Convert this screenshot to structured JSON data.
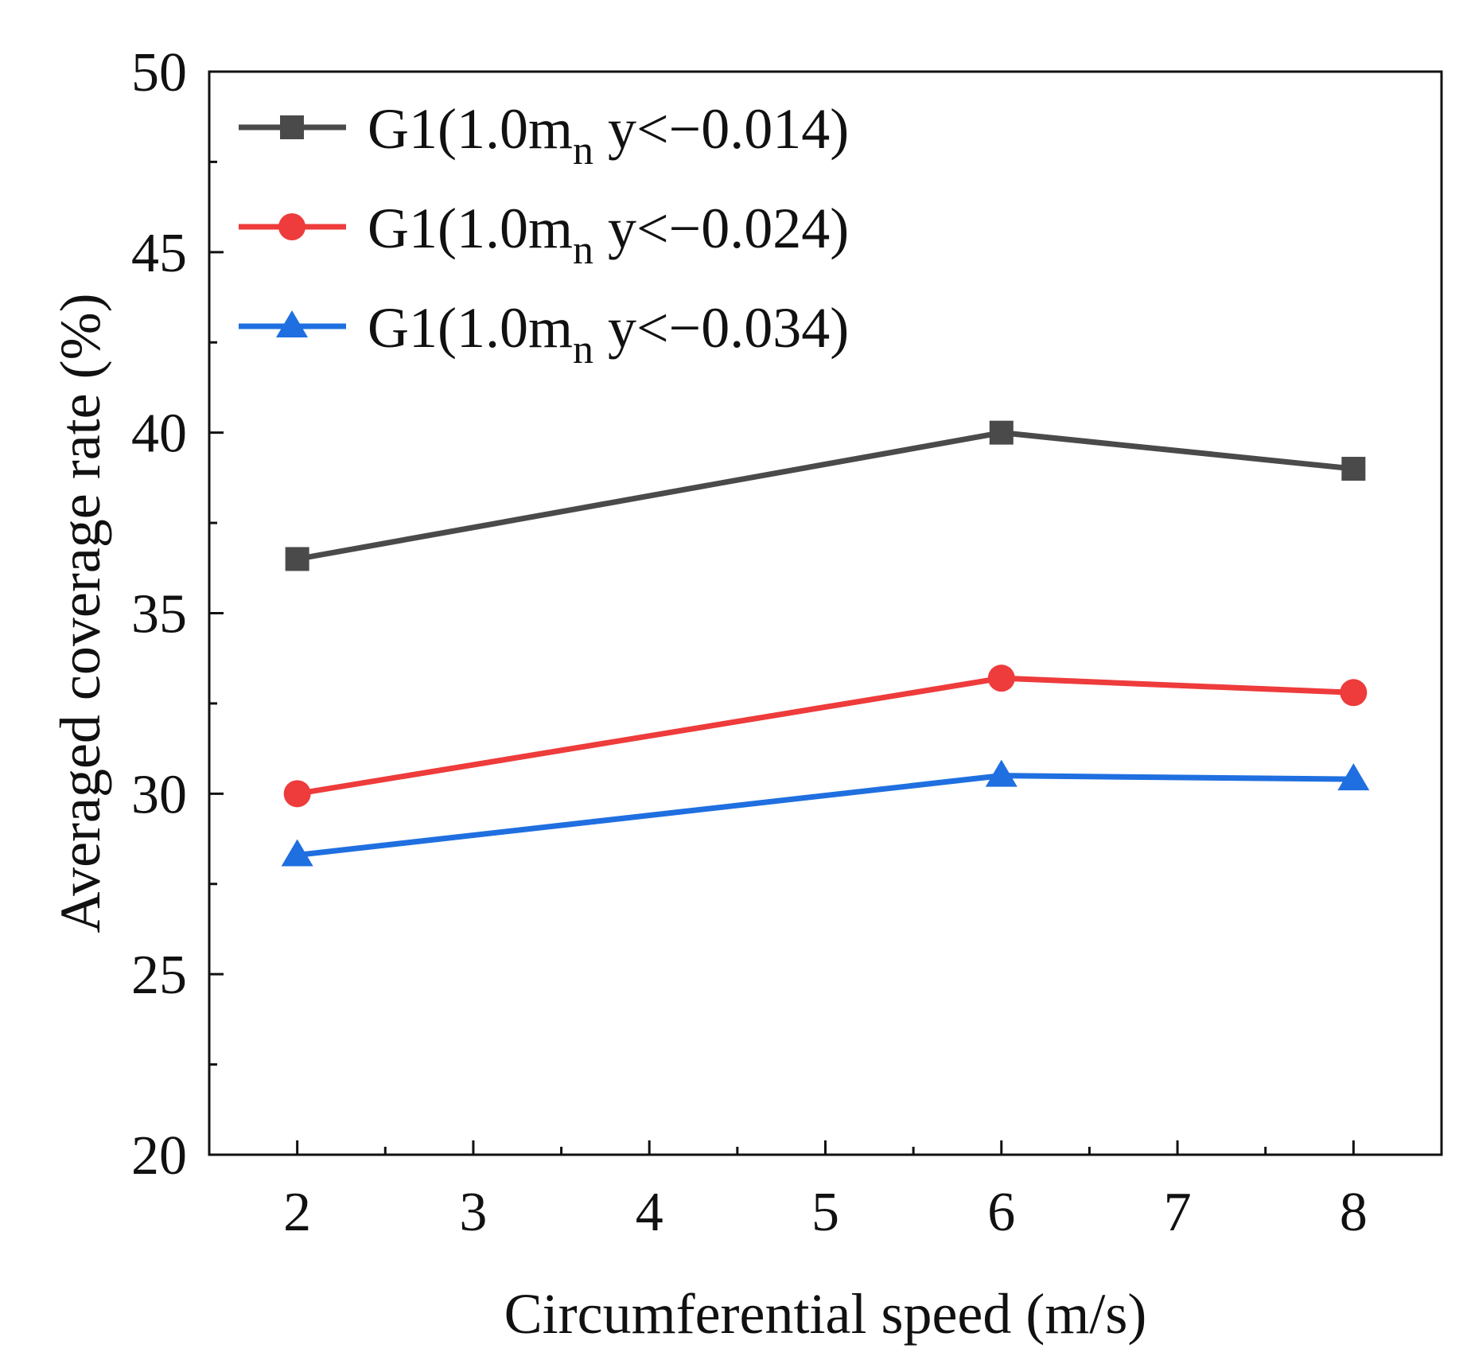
{
  "chart_data": {
    "type": "line",
    "title": "",
    "xlabel": "Circumferential speed (m/s)",
    "ylabel": "Averaged coverage rate (%)",
    "xlim": [
      1.5,
      8.5
    ],
    "ylim": [
      20,
      50
    ],
    "xticks": [
      2,
      3,
      4,
      5,
      6,
      7,
      8
    ],
    "yticks": [
      20,
      25,
      30,
      35,
      40,
      45,
      50
    ],
    "grid": false,
    "legend_position": "top-left",
    "series": [
      {
        "name": "G1(1.0mn y<−0.014)",
        "legend_prefix": "G1(1.0m",
        "legend_sub": "n",
        "legend_suffix": " y<−0.014)",
        "color": "#4a4a4a",
        "marker": "square",
        "x": [
          2,
          6,
          8
        ],
        "y": [
          36.5,
          40.0,
          39.0
        ]
      },
      {
        "name": "G1(1.0mn y<−0.024)",
        "legend_prefix": "G1(1.0m",
        "legend_sub": "n",
        "legend_suffix": " y<−0.024)",
        "color": "#ee3b3b",
        "marker": "circle",
        "x": [
          2,
          6,
          8
        ],
        "y": [
          30.0,
          33.2,
          32.8
        ]
      },
      {
        "name": "G1(1.0mn y<−0.034)",
        "legend_prefix": "G1(1.0m",
        "legend_sub": "n",
        "legend_suffix": " y<−0.034)",
        "color": "#1f6fe0",
        "marker": "triangle",
        "x": [
          2,
          6,
          8
        ],
        "y": [
          28.3,
          30.5,
          30.4
        ]
      }
    ]
  }
}
